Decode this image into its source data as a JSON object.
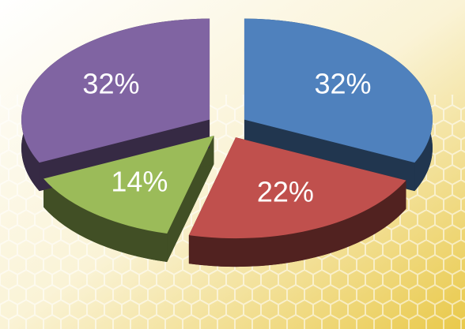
{
  "chart_data": {
    "type": "pie",
    "values": [
      32,
      22,
      14,
      32
    ],
    "value_labels": [
      "32%",
      "22%",
      "14%",
      "32%"
    ],
    "colors": [
      "#4f81bd",
      "#c0504d",
      "#9bbb59",
      "#8064a2"
    ],
    "three_d": true,
    "exploded": true
  }
}
